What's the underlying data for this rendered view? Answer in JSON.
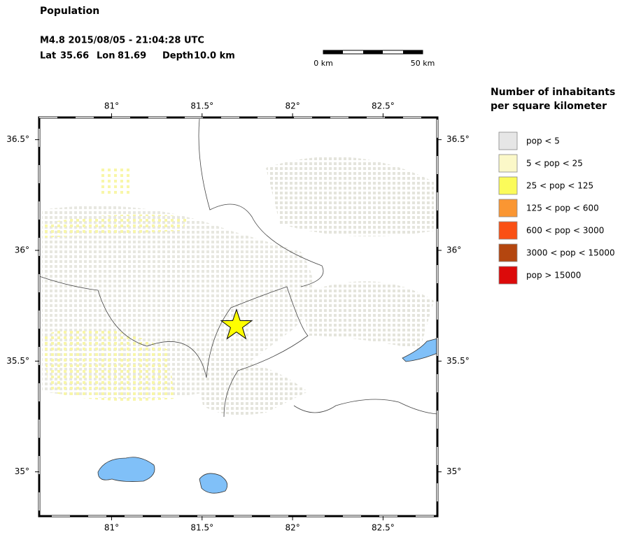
{
  "header": {
    "title": "Population",
    "event": "M4.8  2015/08/05 - 21:04:28 UTC",
    "lat_label": "Lat",
    "lat": 35.66,
    "lon_label": "Lon",
    "lon": 81.69,
    "depth_label": "Depth",
    "depth": "10.0 km"
  },
  "scale_bar": {
    "start": "0 km",
    "end": "50 km"
  },
  "map": {
    "lonlim": [
      80.6,
      82.8
    ],
    "latlim": [
      34.8,
      36.6
    ],
    "lon_ticks": [
      {
        "value": 81,
        "label": "81°"
      },
      {
        "value": 81.5,
        "label": "81.5°"
      },
      {
        "value": 82,
        "label": "82°"
      },
      {
        "value": 82.5,
        "label": "82.5°"
      }
    ],
    "lat_ticks": [
      {
        "value": 35,
        "label": "35°"
      },
      {
        "value": 35.5,
        "label": "35.5°"
      },
      {
        "value": 36,
        "label": "36°"
      },
      {
        "value": 36.5,
        "label": "36.5°"
      }
    ],
    "epicenter_color": "#ffff00"
  },
  "legend": {
    "title": [
      "Number of inhabitants",
      "per square kilometer"
    ],
    "items": [
      {
        "label": "pop < 5",
        "color": "#e6e6e6"
      },
      {
        "label": "5 < pop < 25",
        "color": "#fbf8c8"
      },
      {
        "label": "25 < pop < 125",
        "color": "#fbfb5a"
      },
      {
        "label": "125 < pop < 600",
        "color": "#fa9632"
      },
      {
        "label": "600 < pop < 3000",
        "color": "#fa5014"
      },
      {
        "label": "3000 < pop < 15000",
        "color": "#b4460f"
      },
      {
        "label": "pop > 15000",
        "color": "#dc0a0a"
      }
    ]
  }
}
